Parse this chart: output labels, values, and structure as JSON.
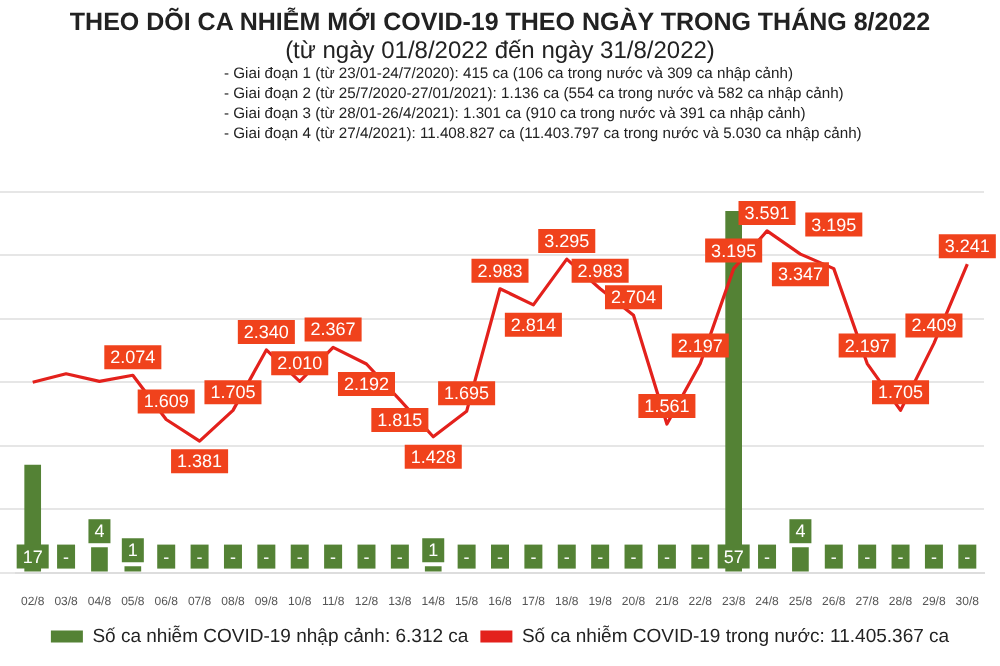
{
  "chart_data": {
    "type": "bar",
    "title": "THEO DÕI CA NHIỄM MỚI COVID-19 THEO NGÀY TRONG THÁNG 8/2022",
    "subtitle": "(từ ngày 01/8/2022 đến ngày 31/8/2022)",
    "annotations": [
      "- Giai đoạn 1 (từ 23/01-24/7/2020): 415 ca (106 ca trong nước và 309 ca nhập cảnh)",
      "- Giai đoạn 2 (từ 25/7/2020-27/01/2021): 1.136 ca (554 ca trong nước và 582 ca nhập cảnh)",
      "- Giai đoạn 3 (từ 28/01-26/4/2021): 1.301 ca (910 ca trong nước và 391 ca nhập cảnh)",
      "- Giai đoạn 4 (từ 27/4/2021): 11.408.827 ca (11.403.797 ca trong nước và 5.030 ca nhập cảnh)"
    ],
    "categories": [
      "02/8",
      "03/8",
      "04/8",
      "05/8",
      "06/8",
      "07/8",
      "08/8",
      "09/8",
      "10/8",
      "11/8",
      "12/8",
      "13/8",
      "14/8",
      "15/8",
      "16/8",
      "17/8",
      "18/8",
      "19/8",
      "20/8",
      "21/8",
      "22/8",
      "23/8",
      "24/8",
      "25/8",
      "26/8",
      "27/8",
      "28/8",
      "29/8",
      "30/8"
    ],
    "series": [
      {
        "name": "Số ca nhiễm COVID-19 nhập cảnh: 6.312 ca",
        "axis": "y",
        "color": "#548235",
        "values": [
          17,
          0,
          4,
          1,
          0,
          0,
          0,
          0,
          0,
          0,
          0,
          0,
          1,
          0,
          0,
          0,
          0,
          0,
          0,
          0,
          0,
          57,
          0,
          4,
          0,
          0,
          0,
          0,
          0
        ],
        "value_labels": [
          "17",
          "-",
          "4",
          "1",
          "-",
          "-",
          "-",
          "-",
          "-",
          "-",
          "-",
          "-",
          "1",
          "-",
          "-",
          "-",
          "-",
          "-",
          "-",
          "-",
          "-",
          "57",
          "-",
          "4",
          "-",
          "-",
          "-",
          "-",
          "-"
        ]
      },
      {
        "name": "Số ca nhiễm COVID-19 trong nước: 11.405.367 ca",
        "type": "line",
        "axis": "y2",
        "color": "#e3211c",
        "values": [
          2000,
          2090,
          2010,
          2074,
          1609,
          1381,
          1705,
          2340,
          2010,
          2367,
          2192,
          1815,
          1428,
          1695,
          2983,
          2814,
          3295,
          2983,
          2704,
          1561,
          2197,
          3195,
          3591,
          3347,
          3195,
          2197,
          1705,
          2409,
          3241
        ],
        "value_labels": [
          null,
          null,
          null,
          "2.074",
          "1.609",
          "1.381",
          "1.705",
          "2.340",
          "2.010",
          "2.367",
          "2.192",
          "1.815",
          "1.428",
          "1.695",
          "2.983",
          "2.814",
          "3.295",
          "2.983",
          "2.704",
          "1.561",
          "2.197",
          "3.195",
          "3.591",
          "3.347",
          "3.195",
          "2.197",
          "1.705",
          "2.409",
          "3.241"
        ]
      }
    ],
    "grid": "y",
    "legend": "bottom",
    "tick_labels": "x",
    "marker": "none"
  }
}
